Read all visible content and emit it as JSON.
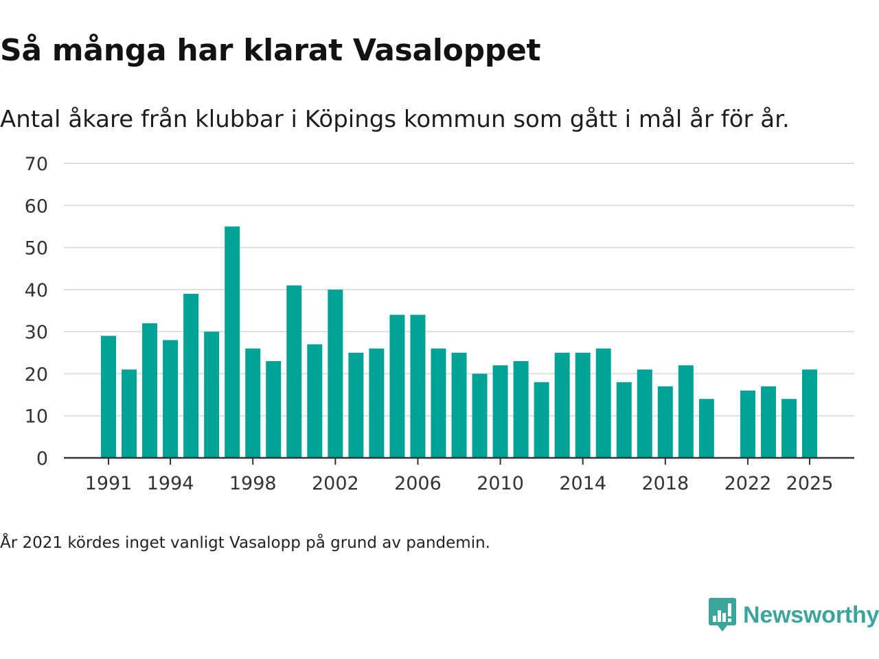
{
  "chart_data": {
    "type": "bar",
    "title": "Så många har klarat Vasaloppet",
    "subtitle": "Antal åkare från klubbar i Köpings kommun som gått i mål år för år.",
    "xlabel": "",
    "ylabel": "",
    "categories": [
      1991,
      1992,
      1993,
      1994,
      1995,
      1996,
      1997,
      1998,
      1999,
      2000,
      2001,
      2002,
      2003,
      2004,
      2005,
      2006,
      2007,
      2008,
      2009,
      2010,
      2011,
      2012,
      2013,
      2014,
      2015,
      2016,
      2017,
      2018,
      2019,
      2020,
      2021,
      2022,
      2023,
      2024,
      2025
    ],
    "values": [
      29,
      21,
      32,
      28,
      39,
      30,
      55,
      26,
      23,
      41,
      27,
      40,
      25,
      26,
      34,
      34,
      26,
      25,
      20,
      22,
      23,
      18,
      25,
      25,
      26,
      18,
      21,
      17,
      22,
      14,
      null,
      16,
      17,
      14,
      21
    ],
    "x_tick_labels": [
      "1991",
      "1994",
      "1998",
      "2002",
      "2006",
      "2010",
      "2014",
      "2018",
      "2022",
      "2025"
    ],
    "y_tick_labels": [
      "0",
      "10",
      "20",
      "30",
      "40",
      "50",
      "60",
      "70"
    ],
    "ylim": [
      0,
      70
    ],
    "grid": true,
    "bar_color": "#00a396",
    "note": "År 2021 kördes inget vanligt Vasalopp på grund av pandemin."
  },
  "brand": {
    "name": "Newsworthy",
    "logo_icon": "newsworthy-logo-icon",
    "color": "#3ba59c"
  }
}
